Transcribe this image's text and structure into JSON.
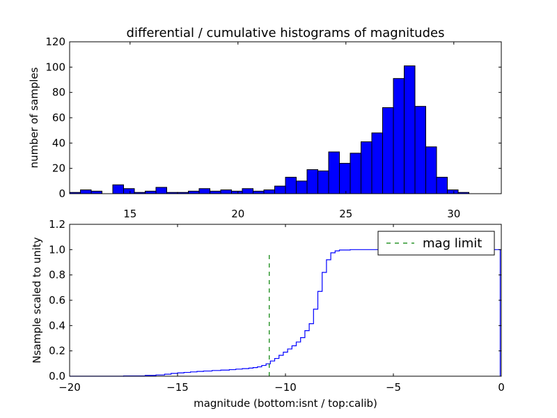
{
  "chart_data": [
    {
      "type": "bar",
      "title": "differential / cumulative histograms of magnitudes",
      "xlabel": "",
      "ylabel": "number of samples",
      "xlim": [
        12.2,
        32.2
      ],
      "ylim": [
        0,
        120
      ],
      "xticks": [
        15,
        20,
        25,
        30
      ],
      "yticks": [
        0,
        20,
        40,
        60,
        80,
        100,
        120
      ],
      "bar_color": "#0000ff",
      "bins": [
        {
          "x0": 12.2,
          "x1": 12.7,
          "count": 1
        },
        {
          "x0": 12.7,
          "x1": 13.2,
          "count": 3
        },
        {
          "x0": 13.2,
          "x1": 13.7,
          "count": 2
        },
        {
          "x0": 13.7,
          "x1": 14.2,
          "count": 0
        },
        {
          "x0": 14.2,
          "x1": 14.7,
          "count": 7
        },
        {
          "x0": 14.7,
          "x1": 15.2,
          "count": 4
        },
        {
          "x0": 15.2,
          "x1": 15.7,
          "count": 1
        },
        {
          "x0": 15.7,
          "x1": 16.2,
          "count": 2
        },
        {
          "x0": 16.2,
          "x1": 16.7,
          "count": 5
        },
        {
          "x0": 16.7,
          "x1": 17.2,
          "count": 1
        },
        {
          "x0": 17.2,
          "x1": 17.7,
          "count": 1
        },
        {
          "x0": 17.7,
          "x1": 18.2,
          "count": 2
        },
        {
          "x0": 18.2,
          "x1": 18.7,
          "count": 4
        },
        {
          "x0": 18.7,
          "x1": 19.2,
          "count": 2
        },
        {
          "x0": 19.2,
          "x1": 19.7,
          "count": 3
        },
        {
          "x0": 19.7,
          "x1": 20.2,
          "count": 2
        },
        {
          "x0": 20.2,
          "x1": 20.7,
          "count": 4
        },
        {
          "x0": 20.7,
          "x1": 21.2,
          "count": 2
        },
        {
          "x0": 21.2,
          "x1": 21.7,
          "count": 3
        },
        {
          "x0": 21.7,
          "x1": 22.2,
          "count": 6
        },
        {
          "x0": 22.2,
          "x1": 22.7,
          "count": 13
        },
        {
          "x0": 22.7,
          "x1": 23.2,
          "count": 10
        },
        {
          "x0": 23.2,
          "x1": 23.7,
          "count": 19
        },
        {
          "x0": 23.7,
          "x1": 24.2,
          "count": 18
        },
        {
          "x0": 24.2,
          "x1": 24.7,
          "count": 33
        },
        {
          "x0": 24.7,
          "x1": 25.2,
          "count": 24
        },
        {
          "x0": 25.2,
          "x1": 25.7,
          "count": 32
        },
        {
          "x0": 25.7,
          "x1": 26.2,
          "count": 41
        },
        {
          "x0": 26.2,
          "x1": 26.7,
          "count": 48
        },
        {
          "x0": 26.7,
          "x1": 27.2,
          "count": 68
        },
        {
          "x0": 27.2,
          "x1": 27.7,
          "count": 91
        },
        {
          "x0": 27.7,
          "x1": 28.2,
          "count": 101
        },
        {
          "x0": 28.2,
          "x1": 28.7,
          "count": 69
        },
        {
          "x0": 28.7,
          "x1": 29.2,
          "count": 37
        },
        {
          "x0": 29.2,
          "x1": 29.7,
          "count": 13
        },
        {
          "x0": 29.7,
          "x1": 30.2,
          "count": 3
        },
        {
          "x0": 30.2,
          "x1": 30.7,
          "count": 1
        }
      ]
    },
    {
      "type": "line",
      "title": "",
      "xlabel": "magnitude (bottom:isnt / top:calib)",
      "ylabel": "Nsample scaled to unity",
      "xlim": [
        -20,
        0
      ],
      "ylim": [
        0.0,
        1.2
      ],
      "xticks": [
        -20,
        -15,
        -10,
        -5,
        0
      ],
      "xtick_labels": [
        "−20",
        "−15",
        "−10",
        "−5",
        "0"
      ],
      "yticks": [
        0.0,
        0.2,
        0.4,
        0.6,
        0.8,
        1.0,
        1.2
      ],
      "ytick_labels": [
        "0.0",
        "0.2",
        "0.4",
        "0.6",
        "0.8",
        "1.0",
        "1.2"
      ],
      "legend_position": "upper-right",
      "series": [
        {
          "kind": "step",
          "color": "#0000ff",
          "points": [
            [
              -20.0,
              0.0
            ],
            [
              -17.5,
              0.002
            ],
            [
              -16.5,
              0.006
            ],
            [
              -16.0,
              0.01
            ],
            [
              -15.6,
              0.016
            ],
            [
              -15.3,
              0.022
            ],
            [
              -15.0,
              0.026
            ],
            [
              -14.7,
              0.03
            ],
            [
              -14.4,
              0.034
            ],
            [
              -14.1,
              0.038
            ],
            [
              -13.8,
              0.041
            ],
            [
              -13.4,
              0.045
            ],
            [
              -13.0,
              0.048
            ],
            [
              -12.6,
              0.052
            ],
            [
              -12.3,
              0.056
            ],
            [
              -12.0,
              0.06
            ],
            [
              -11.7,
              0.064
            ],
            [
              -11.5,
              0.068
            ],
            [
              -11.3,
              0.074
            ],
            [
              -11.1,
              0.085
            ],
            [
              -10.9,
              0.098
            ],
            [
              -10.7,
              0.12
            ],
            [
              -10.5,
              0.14
            ],
            [
              -10.3,
              0.165
            ],
            [
              -10.1,
              0.19
            ],
            [
              -9.9,
              0.215
            ],
            [
              -9.7,
              0.24
            ],
            [
              -9.5,
              0.27
            ],
            [
              -9.3,
              0.305
            ],
            [
              -9.1,
              0.36
            ],
            [
              -8.9,
              0.415
            ],
            [
              -8.7,
              0.53
            ],
            [
              -8.5,
              0.67
            ],
            [
              -8.3,
              0.82
            ],
            [
              -8.1,
              0.92
            ],
            [
              -7.9,
              0.975
            ],
            [
              -7.7,
              0.99
            ],
            [
              -7.5,
              0.997
            ],
            [
              -7.0,
              1.0
            ],
            [
              -0.05,
              1.0
            ],
            [
              -0.05,
              0.0
            ]
          ]
        },
        {
          "name": "mag limit",
          "kind": "vertical-dashed",
          "color": "#008000",
          "x": -10.75,
          "y_range": [
            0.0,
            0.97
          ]
        }
      ]
    }
  ]
}
